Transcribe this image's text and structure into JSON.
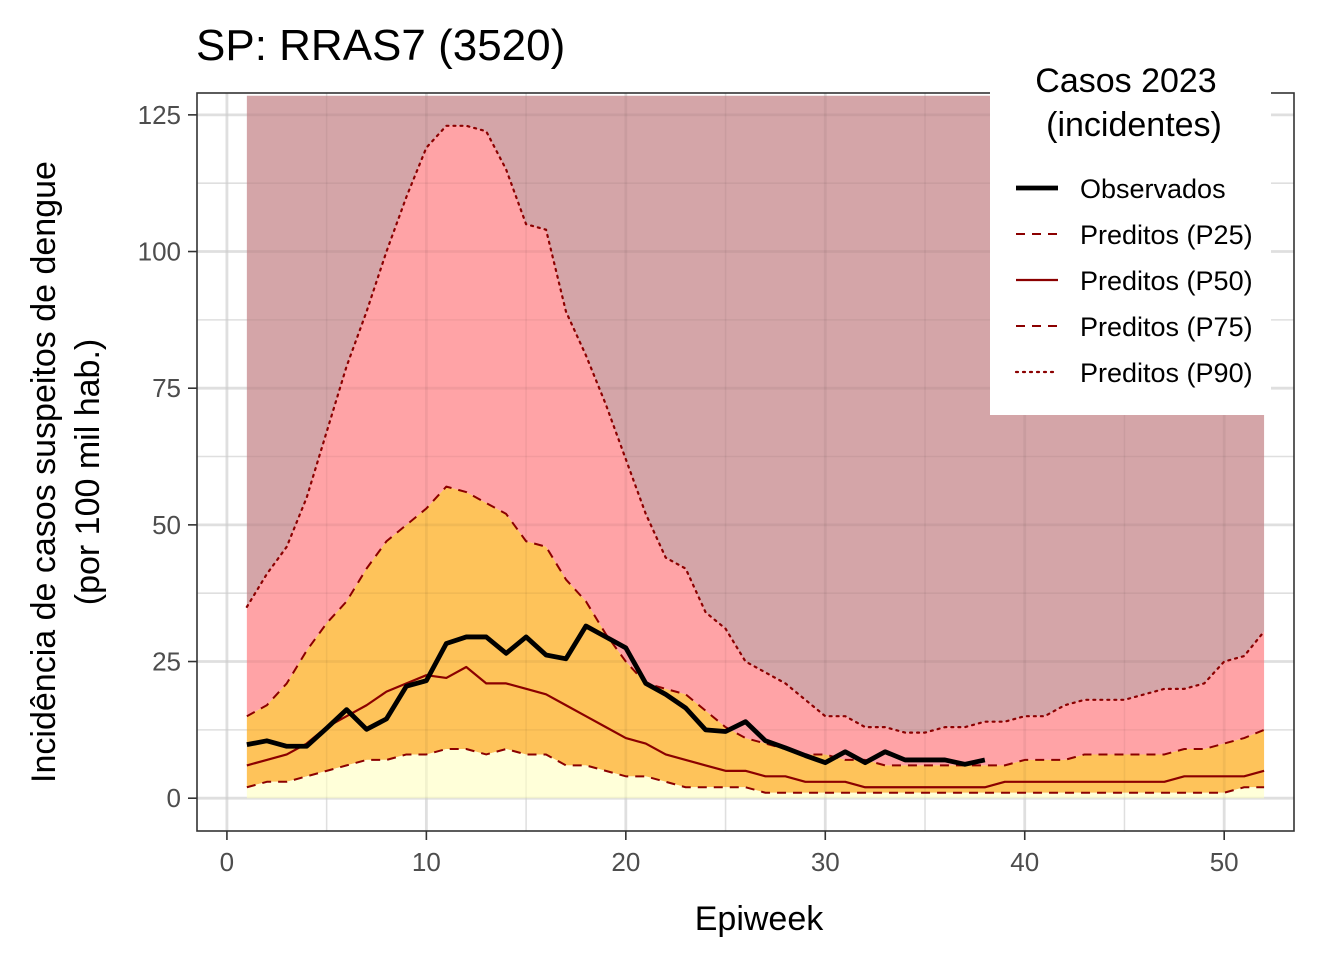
{
  "chart_data": {
    "type": "area",
    "title": "SP: RRAS7 (3520)",
    "xlabel": "Epiweek",
    "ylabel": [
      "Incidência de casos suspeitos de dengue",
      "(por 100 mil hab.)"
    ],
    "xlim": [
      -1.5,
      53.5
    ],
    "ylim": [
      -6,
      129
    ],
    "x_ticks": [
      0,
      10,
      20,
      30,
      40,
      50
    ],
    "y_ticks": [
      0,
      25,
      50,
      75,
      100,
      125
    ],
    "grid": true,
    "legend_position": "top-right",
    "legend": {
      "title": [
        "Casos 2023",
        "(incidentes)"
      ],
      "entries": [
        {
          "label": "Observados",
          "style": "solid-thick",
          "color": "#000000"
        },
        {
          "label": "Preditos (P25)",
          "style": "dashed",
          "color": "#8b0000"
        },
        {
          "label": "Preditos (P50)",
          "style": "solid",
          "color": "#8b0000"
        },
        {
          "label": "Preditos (P75)",
          "style": "dashed",
          "color": "#8b0000"
        },
        {
          "label": "Preditos (P90)",
          "style": "dotted",
          "color": "#8b0000"
        }
      ]
    },
    "band_colors": {
      "below_p25": "#ffffd9",
      "p25_p75": "#fec35a",
      "p75_p90": "#ffa3a6",
      "above_p90": "#d4a5a8"
    },
    "line_color": "#8b0000",
    "observed_color": "#000000",
    "weeks": [
      1,
      2,
      3,
      4,
      5,
      6,
      7,
      8,
      9,
      10,
      11,
      12,
      13,
      14,
      15,
      16,
      17,
      18,
      19,
      20,
      21,
      22,
      23,
      24,
      25,
      26,
      27,
      28,
      29,
      30,
      31,
      32,
      33,
      34,
      35,
      36,
      37,
      38,
      39,
      40,
      41,
      42,
      43,
      44,
      45,
      46,
      47,
      48,
      49,
      50,
      51,
      52
    ],
    "series": [
      {
        "name": "Preditos (P25)",
        "values": [
          2,
          3,
          3,
          4,
          5,
          6,
          7,
          7,
          8,
          8,
          9,
          9,
          8,
          9,
          8,
          8,
          6,
          6,
          5,
          4,
          4,
          3,
          2,
          2,
          2,
          2,
          1,
          1,
          1,
          1,
          1,
          1,
          1,
          1,
          1,
          1,
          1,
          1,
          1,
          1,
          1,
          1,
          1,
          1,
          1,
          1,
          1,
          1,
          1,
          1,
          2,
          2
        ]
      },
      {
        "name": "Preditos (P50)",
        "values": [
          6,
          7,
          8,
          10,
          13,
          15,
          17,
          19.5,
          21,
          22.5,
          22,
          24,
          21,
          21,
          20,
          19,
          17,
          15,
          13,
          11,
          10,
          8,
          7,
          6,
          5,
          5,
          4,
          4,
          3,
          3,
          3,
          2,
          2,
          2,
          2,
          2,
          2,
          2,
          3,
          3,
          3,
          3,
          3,
          3,
          3,
          3,
          3,
          4,
          4,
          4,
          4,
          5
        ]
      },
      {
        "name": "Preditos (P75)",
        "values": [
          15,
          17,
          21,
          27,
          32,
          36,
          42,
          47,
          50,
          53,
          57,
          56,
          54,
          52,
          47,
          46,
          40,
          36,
          30,
          25,
          21,
          20,
          19,
          16,
          13,
          11,
          10,
          9,
          8,
          8,
          7,
          7,
          6,
          6,
          6,
          6,
          6,
          6,
          6,
          7,
          7,
          7,
          8,
          8,
          8,
          8,
          8,
          9,
          9,
          10,
          11,
          12.5
        ]
      },
      {
        "name": "Preditos (P90)",
        "values": [
          35,
          41,
          46,
          55,
          67,
          79,
          89,
          100,
          110,
          119,
          123,
          123,
          122,
          115,
          105,
          104,
          89,
          81,
          72,
          62,
          52,
          44,
          42,
          34,
          31,
          25,
          23,
          21,
          18,
          15,
          15,
          13,
          13,
          12,
          12,
          13,
          13,
          14,
          14,
          15,
          15,
          17,
          18,
          18,
          18,
          19,
          20,
          20,
          21,
          25,
          26,
          30.5
        ]
      },
      {
        "name": "Observados",
        "weeks": [
          1,
          2,
          3,
          4,
          5,
          6,
          7,
          8,
          9,
          10,
          11,
          12,
          13,
          14,
          15,
          16,
          17,
          18,
          19,
          20,
          21,
          22,
          23,
          24,
          25,
          26,
          27,
          28,
          29,
          30,
          31,
          32,
          33,
          34,
          35,
          36,
          37,
          38
        ],
        "values": [
          9.8,
          10.5,
          9.5,
          9.5,
          12.8,
          16.2,
          12.6,
          14.5,
          20.5,
          21.5,
          28.3,
          29.5,
          29.5,
          26.5,
          29.5,
          26.2,
          25.5,
          31.5,
          29.5,
          27.5,
          21,
          19,
          16.5,
          12.5,
          12.2,
          14,
          10.5,
          9.2,
          7.8,
          6.5,
          8.5,
          6.5,
          8.5,
          7,
          7,
          7,
          6.2,
          7
        ]
      }
    ]
  }
}
